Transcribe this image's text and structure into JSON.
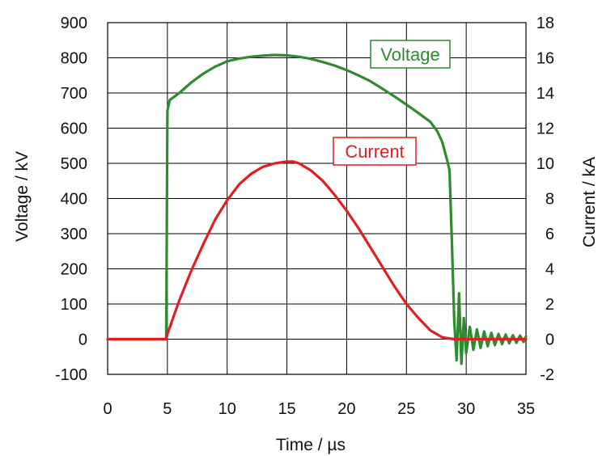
{
  "chart_data": {
    "type": "line",
    "xlabel": "Time / µs",
    "ylabel_left": "Voltage / kV",
    "ylabel_right": "Current / kA",
    "xlim": [
      0,
      35
    ],
    "ylim_left": [
      -100,
      900
    ],
    "ylim_right": [
      -2,
      18
    ],
    "x_ticks": [
      0,
      5,
      10,
      15,
      20,
      25,
      30,
      35
    ],
    "y_ticks_left": [
      -100,
      0,
      100,
      200,
      300,
      400,
      500,
      600,
      700,
      800,
      900
    ],
    "y_ticks_right": [
      -2,
      0,
      2,
      4,
      6,
      8,
      10,
      12,
      14,
      16,
      18
    ],
    "grid": true,
    "series": [
      {
        "name": "Voltage",
        "axis": "left",
        "color": "#2e8b2e",
        "x": [
          0,
          4.9,
          5.0,
          5.2,
          6,
          7,
          8,
          9,
          10,
          11,
          12,
          13,
          14,
          15,
          16,
          17,
          18,
          19,
          20,
          21,
          22,
          23,
          24,
          25,
          26,
          27,
          27.6,
          28,
          28.4,
          28.6,
          28.8,
          29.0,
          29.2,
          29.4,
          29.6,
          29.8,
          30.0,
          30.3,
          30.6,
          30.9,
          31.2,
          31.5,
          31.8,
          32.1,
          32.4,
          32.7,
          33.0,
          33.3,
          33.6,
          33.9,
          34.2,
          34.5,
          34.8,
          35.0
        ],
        "y": [
          0,
          0,
          650,
          680,
          700,
          730,
          755,
          775,
          790,
          798,
          803,
          806,
          808,
          807,
          803,
          797,
          788,
          778,
          765,
          750,
          733,
          712,
          690,
          667,
          643,
          618,
          590,
          560,
          510,
          480,
          280,
          50,
          -60,
          130,
          -70,
          60,
          -40,
          35,
          -30,
          28,
          -25,
          22,
          -20,
          18,
          -17,
          15,
          -14,
          13,
          -12,
          11,
          -10,
          10,
          -8,
          8
        ]
      },
      {
        "name": "Current",
        "axis": "right",
        "color": "#e02020",
        "x": [
          0,
          4.9,
          5.0,
          6,
          7,
          8,
          9,
          10,
          11,
          12,
          13,
          14,
          15,
          15.5,
          16,
          17,
          18,
          19,
          20,
          21,
          22,
          23,
          24,
          25,
          26,
          27,
          28,
          29,
          35
        ],
        "y": [
          0,
          0,
          0.3,
          2.2,
          3.9,
          5.4,
          6.8,
          7.9,
          8.8,
          9.4,
          9.8,
          10.0,
          10.1,
          10.1,
          10.0,
          9.6,
          9.0,
          8.2,
          7.3,
          6.3,
          5.2,
          4.1,
          3.0,
          2.0,
          1.2,
          0.5,
          0.1,
          0,
          0
        ]
      }
    ]
  }
}
